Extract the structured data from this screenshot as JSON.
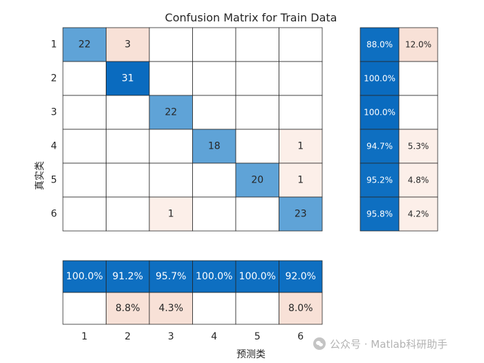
{
  "chart_data": {
    "type": "heatmap",
    "title": "Confusion Matrix for Train Data",
    "xlabel": "预测类",
    "ylabel": "真实类",
    "classes": [
      "1",
      "2",
      "3",
      "4",
      "5",
      "6"
    ],
    "matrix": [
      [
        22,
        3,
        0,
        0,
        0,
        0
      ],
      [
        0,
        31,
        0,
        0,
        0,
        0
      ],
      [
        0,
        0,
        22,
        0,
        0,
        0
      ],
      [
        0,
        0,
        0,
        18,
        0,
        1
      ],
      [
        0,
        0,
        0,
        0,
        20,
        1
      ],
      [
        0,
        0,
        1,
        0,
        0,
        23
      ]
    ],
    "row_summary": [
      [
        "88.0%",
        "12.0%"
      ],
      [
        "100.0%",
        ""
      ],
      [
        "100.0%",
        ""
      ],
      [
        "94.7%",
        "5.3%"
      ],
      [
        "95.2%",
        "4.8%"
      ],
      [
        "95.8%",
        "4.2%"
      ]
    ],
    "column_summary": {
      "correct": [
        "100.0%",
        "91.2%",
        "95.7%",
        "100.0%",
        "100.0%",
        "92.0%"
      ],
      "incorrect": [
        "",
        "8.8%",
        "4.3%",
        "",
        "",
        "8.0%"
      ]
    },
    "colors": {
      "correct_light": "#5fa3d7",
      "correct_dark": "#0a6bbf",
      "incorrect_light": "#fcefe9",
      "incorrect_mid": "#f8e1d7",
      "empty": "#ffffff",
      "grid": "#262626"
    }
  },
  "watermark": {
    "text": "公众号 · Matlab科研助手",
    "icon": "wechat-icon"
  }
}
